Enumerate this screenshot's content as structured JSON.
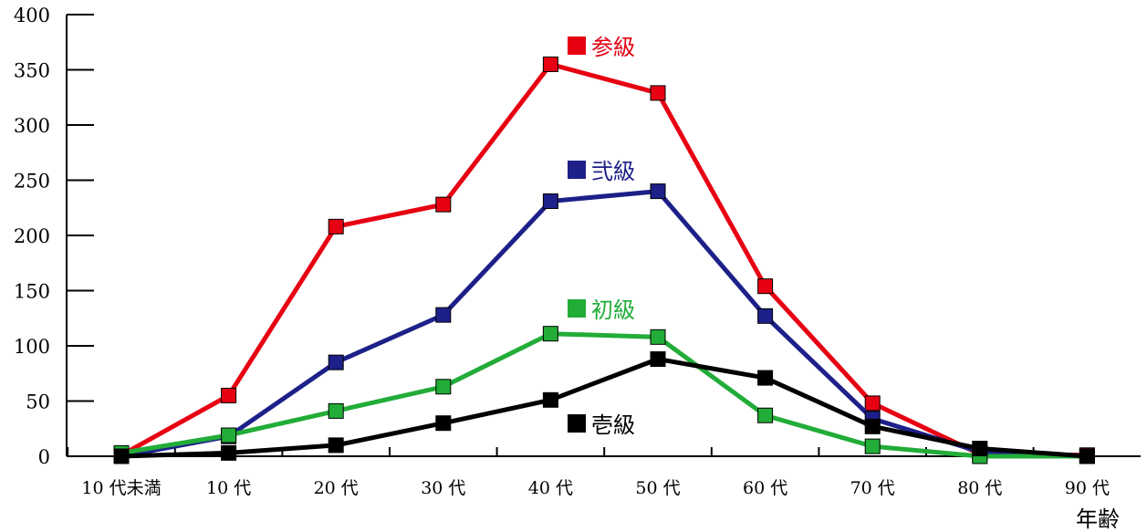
{
  "chart_data": {
    "type": "line",
    "title": "",
    "xlabel": "年齢",
    "ylabel": "",
    "ylim": [
      0,
      400
    ],
    "yticks": [
      "0",
      "50",
      "100",
      "150",
      "200",
      "250",
      "300",
      "350",
      "400"
    ],
    "categories": [
      "10 代未満",
      "10 代",
      "20 代",
      "30 代",
      "40 代",
      "50 代",
      "60 代",
      "70 代",
      "80 代",
      "90 代"
    ],
    "grid": false,
    "legend_placement": "inline labels near curves",
    "series": [
      {
        "name": "参級",
        "color": "#e60012",
        "values": [
          1,
          55,
          208,
          228,
          355,
          329,
          154,
          48,
          2,
          1
        ]
      },
      {
        "name": "弐級",
        "color": "#1d2088",
        "values": [
          0,
          18,
          85,
          128,
          231,
          240,
          127,
          34,
          4,
          0
        ]
      },
      {
        "name": "初級",
        "color": "#22ac38",
        "values": [
          3,
          19,
          41,
          63,
          111,
          108,
          37,
          9,
          0,
          0
        ]
      },
      {
        "name": "壱級",
        "color": "#000000",
        "values": [
          0,
          3,
          10,
          30,
          51,
          88,
          71,
          27,
          7,
          0
        ]
      }
    ]
  }
}
